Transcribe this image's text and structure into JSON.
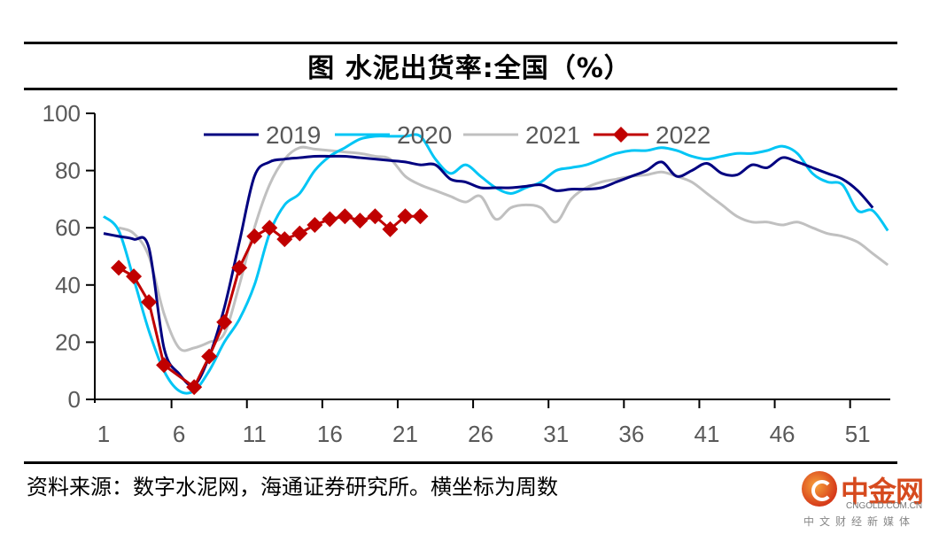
{
  "header": {
    "title": "图 水泥出货率:全国（%）"
  },
  "footer": {
    "source": "资料来源：数字水泥网，海通证券研究所。横坐标为周数",
    "watermark": {
      "name": "中金网",
      "domain": "CNGOLD.COM.CN",
      "tagline": "中文财经新媒体"
    }
  },
  "chart_data": {
    "type": "line",
    "title": "水泥出货率:全国（%）",
    "xlabel": "周数",
    "ylabel": "%",
    "ylim": [
      0,
      100
    ],
    "yticks": [
      0,
      20,
      40,
      60,
      80,
      100
    ],
    "xlim": [
      1,
      53
    ],
    "xticks": [
      1,
      6,
      11,
      16,
      21,
      26,
      31,
      36,
      41,
      46,
      51
    ],
    "grid": false,
    "legend": "top-center",
    "series": [
      {
        "name": "2019",
        "color": "#000080",
        "marker": "none",
        "x": [
          1,
          2,
          3,
          4,
          5,
          6,
          7,
          8,
          9,
          10,
          11,
          12,
          13,
          14,
          15,
          16,
          17,
          18,
          19,
          20,
          21,
          22,
          23,
          24,
          25,
          26,
          27,
          28,
          29,
          30,
          31,
          32,
          33,
          34,
          35,
          36,
          37,
          38,
          39,
          40,
          41,
          42,
          43,
          44,
          45,
          46,
          47,
          48,
          49,
          50,
          51,
          52,
          53
        ],
        "values": [
          58,
          57,
          56,
          53,
          18,
          9,
          5,
          15,
          32,
          55,
          78,
          83,
          84,
          84.5,
          85,
          85,
          85,
          84.5,
          84,
          83.5,
          83,
          82,
          82,
          77,
          76,
          74,
          74,
          74,
          74.5,
          75,
          73,
          73.5,
          73.5,
          74,
          76,
          78,
          80,
          83,
          78,
          80,
          82.5,
          79,
          78.5,
          82,
          81,
          84.5,
          83,
          81,
          79,
          77,
          73,
          67,
          null
        ]
      },
      {
        "name": "2020",
        "color": "#00C5F5",
        "marker": "none",
        "x": [
          1,
          2,
          3,
          4,
          5,
          6,
          7,
          8,
          9,
          10,
          11,
          12,
          13,
          14,
          15,
          16,
          17,
          18,
          19,
          20,
          21,
          22,
          23,
          24,
          25,
          26,
          27,
          28,
          29,
          30,
          31,
          32,
          33,
          34,
          35,
          36,
          37,
          38,
          39,
          40,
          41,
          42,
          43,
          44,
          45,
          46,
          47,
          48,
          49,
          50,
          51,
          52,
          53
        ],
        "values": [
          64,
          59,
          42,
          24,
          10,
          3,
          3,
          10,
          20,
          28,
          40,
          58,
          68,
          72,
          80,
          85,
          88,
          91,
          92,
          92,
          92,
          92,
          84,
          79,
          82,
          78,
          74,
          72,
          74,
          76,
          80,
          81,
          82,
          84,
          86,
          87,
          87,
          88,
          87,
          85,
          84,
          85,
          86,
          86,
          87,
          88.5,
          86,
          79,
          76,
          75,
          66,
          66,
          59
        ]
      },
      {
        "name": "2021",
        "color": "#C0C0C0",
        "marker": "none",
        "x": [
          1,
          2,
          3,
          4,
          5,
          6,
          7,
          8,
          9,
          10,
          11,
          12,
          13,
          14,
          15,
          16,
          17,
          18,
          19,
          20,
          21,
          22,
          23,
          24,
          25,
          26,
          27,
          28,
          29,
          30,
          31,
          32,
          33,
          34,
          35,
          36,
          37,
          38,
          39,
          40,
          41,
          42,
          43,
          44,
          45,
          46,
          47,
          48,
          49,
          50,
          51,
          52,
          53
        ],
        "values": [
          null,
          60,
          58,
          50,
          30,
          18,
          18,
          20,
          23,
          40,
          60,
          75,
          84,
          88,
          87.5,
          87,
          86.5,
          86,
          85,
          84,
          78,
          75,
          73,
          71,
          69,
          71,
          63,
          67,
          68,
          67,
          62,
          70,
          74,
          76,
          77,
          78,
          78.5,
          79.5,
          78,
          76,
          72,
          68,
          64,
          62,
          62,
          61,
          62,
          60,
          58,
          57,
          55,
          51,
          47
        ]
      },
      {
        "name": "2022",
        "color": "#C00000",
        "marker": "diamond",
        "x": [
          2,
          3,
          4,
          5,
          7,
          8,
          9,
          10,
          11,
          12,
          13,
          14,
          15,
          16,
          17,
          18,
          19,
          20,
          21,
          22
        ],
        "values": [
          46,
          43,
          34,
          12,
          4.3,
          15,
          27,
          46,
          57,
          60,
          56,
          58,
          61,
          63,
          64,
          62.5,
          64,
          59.5,
          64,
          64
        ]
      }
    ]
  }
}
